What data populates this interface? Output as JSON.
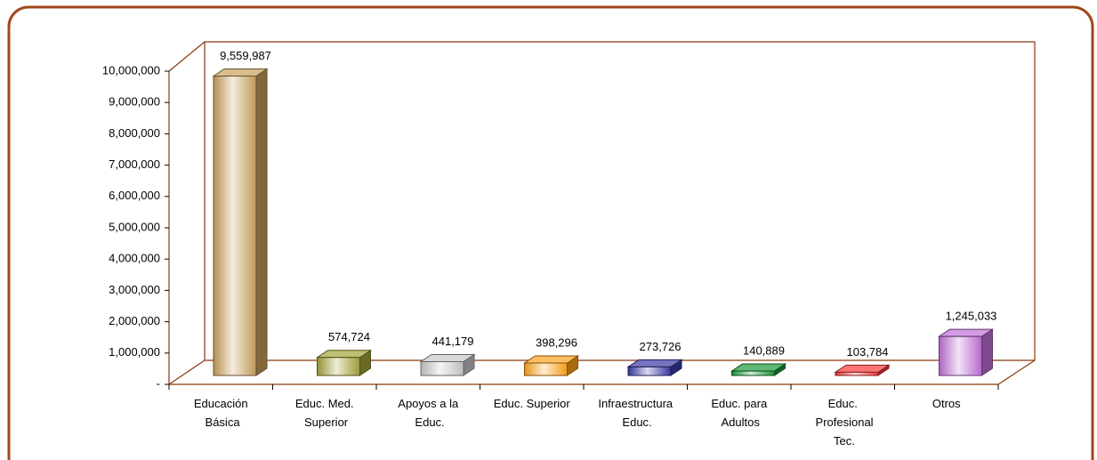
{
  "chart_data": {
    "type": "bar3d",
    "categories": [
      "Educación Básica",
      "Educ. Med. Superior",
      "Apoyos a la Educ.",
      "Educ. Superior",
      "Infraestructura Educ.",
      "Educ. para Adultos",
      "Educ. Profesional Tec.",
      "Otros"
    ],
    "values": [
      9559987,
      574724,
      441179,
      398296,
      273726,
      140889,
      103784,
      1245033
    ],
    "value_labels": [
      "9,559,987",
      "574,724",
      "441,179",
      "398,296",
      "273,726",
      "140,889",
      "103,784",
      "1,245,033"
    ],
    "colors": [
      "#c9a05a",
      "#a3a33a",
      "#c8c8c8",
      "#ffa31a",
      "#3a3aa8",
      "#1a9a3a",
      "#ff3a3a",
      "#c070d8"
    ],
    "ylim": [
      0,
      10000000
    ],
    "yticks": [
      {
        "value": 0,
        "label": "-"
      },
      {
        "value": 1000000,
        "label": "1,000,000"
      },
      {
        "value": 2000000,
        "label": "2,000,000"
      },
      {
        "value": 3000000,
        "label": "3,000,000"
      },
      {
        "value": 4000000,
        "label": "4,000,000"
      },
      {
        "value": 5000000,
        "label": "5,000,000"
      },
      {
        "value": 6000000,
        "label": "6,000,000"
      },
      {
        "value": 7000000,
        "label": "7,000,000"
      },
      {
        "value": 8000000,
        "label": "8,000,000"
      },
      {
        "value": 9000000,
        "label": "9,000,000"
      },
      {
        "value": 10000000,
        "label": "10,000,000"
      }
    ],
    "grid": false
  }
}
